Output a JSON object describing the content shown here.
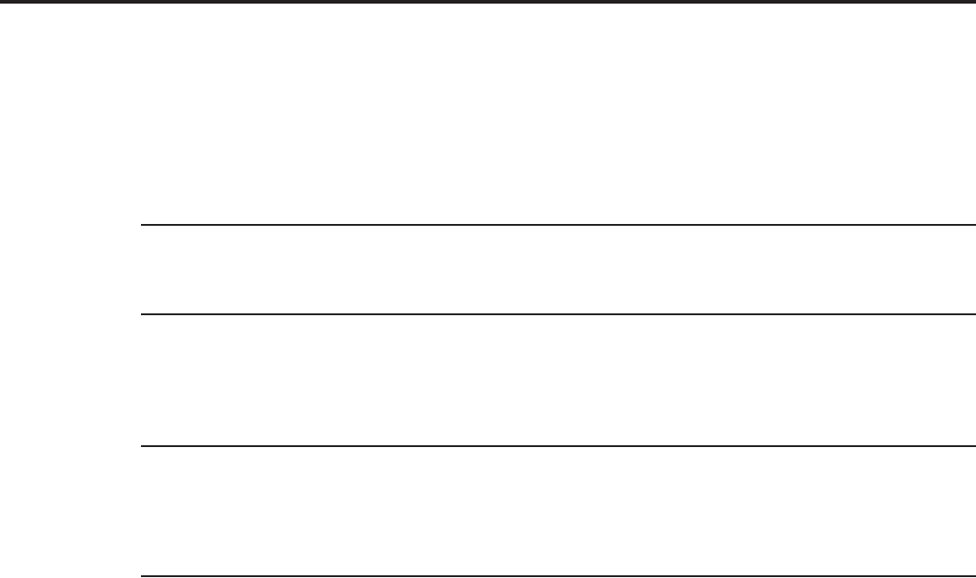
{
  "colors": {
    "rule": "#231f20",
    "background": "#ffffff"
  }
}
